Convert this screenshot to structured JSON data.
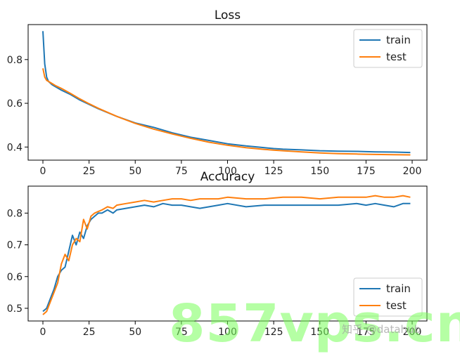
{
  "chart_data": [
    {
      "type": "line",
      "title": "Loss",
      "xlabel": "",
      "ylabel": "",
      "xlim": [
        -8,
        208
      ],
      "ylim": [
        0.34,
        0.96
      ],
      "xticks": [
        0,
        25,
        50,
        75,
        100,
        125,
        150,
        175,
        200
      ],
      "yticks": [
        0.4,
        0.6,
        0.8
      ],
      "grid": false,
      "legend": "top-right",
      "series": [
        {
          "name": "train",
          "color": "#1f77b4",
          "x": [
            0,
            1,
            2,
            3,
            5,
            7,
            10,
            15,
            20,
            25,
            30,
            40,
            50,
            60,
            70,
            75,
            80,
            90,
            100,
            110,
            120,
            125,
            130,
            140,
            150,
            160,
            170,
            175,
            180,
            190,
            199
          ],
          "y": [
            0.93,
            0.78,
            0.72,
            0.7,
            0.685,
            0.675,
            0.66,
            0.64,
            0.615,
            0.595,
            0.575,
            0.54,
            0.51,
            0.49,
            0.465,
            0.455,
            0.445,
            0.43,
            0.415,
            0.405,
            0.397,
            0.393,
            0.39,
            0.387,
            0.383,
            0.381,
            0.38,
            0.379,
            0.378,
            0.377,
            0.375
          ]
        },
        {
          "name": "test",
          "color": "#ff7f0e",
          "x": [
            0,
            1,
            2,
            3,
            5,
            7,
            10,
            15,
            20,
            25,
            30,
            40,
            50,
            60,
            70,
            75,
            80,
            90,
            100,
            110,
            120,
            125,
            130,
            140,
            150,
            160,
            170,
            175,
            180,
            190,
            199
          ],
          "y": [
            0.76,
            0.72,
            0.705,
            0.7,
            0.69,
            0.68,
            0.668,
            0.645,
            0.62,
            0.598,
            0.577,
            0.54,
            0.508,
            0.482,
            0.46,
            0.45,
            0.44,
            0.422,
            0.408,
            0.397,
            0.389,
            0.386,
            0.383,
            0.378,
            0.373,
            0.37,
            0.368,
            0.367,
            0.366,
            0.365,
            0.364
          ]
        }
      ]
    },
    {
      "type": "line",
      "title": "Accuracy",
      "xlabel": "",
      "ylabel": "",
      "xlim": [
        -8,
        208
      ],
      "ylim": [
        0.46,
        0.885
      ],
      "xticks": [
        0,
        25,
        50,
        75,
        100,
        125,
        150,
        175,
        200
      ],
      "yticks": [
        0.5,
        0.6,
        0.7,
        0.8
      ],
      "grid": false,
      "legend": "bottom-right",
      "series": [
        {
          "name": "train",
          "color": "#1f77b4",
          "x": [
            0,
            2,
            4,
            6,
            8,
            10,
            12,
            14,
            16,
            18,
            20,
            22,
            24,
            26,
            28,
            30,
            32,
            35,
            38,
            40,
            45,
            50,
            55,
            60,
            65,
            70,
            75,
            80,
            85,
            90,
            95,
            100,
            110,
            120,
            130,
            140,
            150,
            160,
            170,
            175,
            180,
            185,
            190,
            195,
            199
          ],
          "y": [
            0.49,
            0.5,
            0.53,
            0.56,
            0.6,
            0.62,
            0.63,
            0.68,
            0.73,
            0.7,
            0.74,
            0.72,
            0.76,
            0.78,
            0.79,
            0.8,
            0.8,
            0.81,
            0.8,
            0.81,
            0.815,
            0.82,
            0.825,
            0.82,
            0.83,
            0.825,
            0.825,
            0.82,
            0.815,
            0.82,
            0.825,
            0.83,
            0.82,
            0.825,
            0.825,
            0.825,
            0.825,
            0.825,
            0.83,
            0.825,
            0.83,
            0.825,
            0.82,
            0.83,
            0.83
          ]
        },
        {
          "name": "test",
          "color": "#ff7f0e",
          "x": [
            0,
            2,
            4,
            6,
            8,
            10,
            12,
            14,
            16,
            18,
            20,
            22,
            24,
            26,
            28,
            30,
            32,
            35,
            38,
            40,
            45,
            50,
            55,
            60,
            65,
            70,
            75,
            80,
            85,
            90,
            95,
            100,
            110,
            120,
            130,
            140,
            150,
            160,
            170,
            175,
            180,
            185,
            190,
            195,
            199
          ],
          "y": [
            0.48,
            0.49,
            0.52,
            0.55,
            0.58,
            0.64,
            0.67,
            0.65,
            0.7,
            0.72,
            0.71,
            0.78,
            0.75,
            0.79,
            0.8,
            0.805,
            0.81,
            0.82,
            0.815,
            0.825,
            0.83,
            0.835,
            0.84,
            0.835,
            0.84,
            0.845,
            0.845,
            0.84,
            0.845,
            0.845,
            0.845,
            0.85,
            0.845,
            0.845,
            0.85,
            0.85,
            0.845,
            0.85,
            0.85,
            0.85,
            0.855,
            0.85,
            0.85,
            0.855,
            0.85
          ]
        }
      ]
    }
  ],
  "watermark": {
    "large": "857vps.cn",
    "small": "知乎 @datahub"
  }
}
